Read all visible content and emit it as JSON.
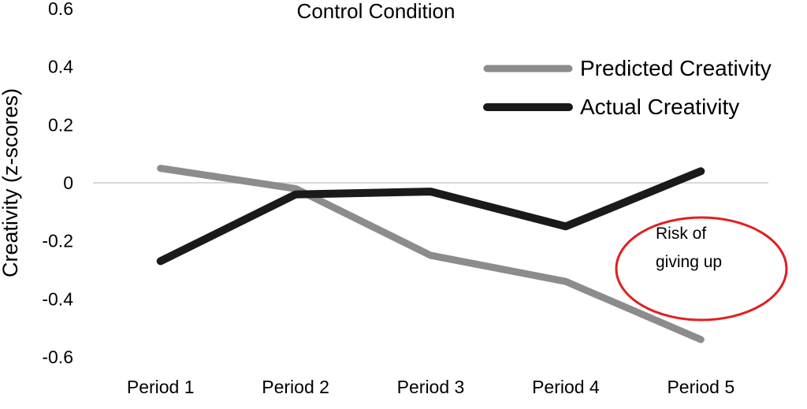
{
  "chart_data": {
    "type": "line",
    "title": "Control Condition",
    "xlabel": "",
    "ylabel": "Creativity (z-scores)",
    "categories": [
      "Period 1",
      "Period 2",
      "Period 3",
      "Period 4",
      "Period 5"
    ],
    "ylim": [
      -0.6,
      0.6
    ],
    "yticks": [
      0.6,
      0.4,
      0.2,
      0,
      -0.2,
      -0.4,
      -0.6
    ],
    "ytick_labels": [
      "0.6",
      "0.4",
      "0.2",
      "0",
      "-0.2",
      "-0.4",
      "-0.6"
    ],
    "grid": false,
    "zero_line": true,
    "legend_position": "top-right",
    "series": [
      {
        "name": "Predicted Creativity",
        "color": "#8c8c8c",
        "values": [
          0.05,
          -0.02,
          -0.25,
          -0.34,
          -0.54
        ]
      },
      {
        "name": "Actual Creativity",
        "color": "#1a1a1a",
        "values": [
          -0.27,
          -0.04,
          -0.03,
          -0.15,
          0.04
        ]
      }
    ],
    "annotation": {
      "text_lines": [
        "Risk of",
        "giving up"
      ],
      "ellipse_color": "#e02020",
      "near_category": "Period 5"
    }
  }
}
